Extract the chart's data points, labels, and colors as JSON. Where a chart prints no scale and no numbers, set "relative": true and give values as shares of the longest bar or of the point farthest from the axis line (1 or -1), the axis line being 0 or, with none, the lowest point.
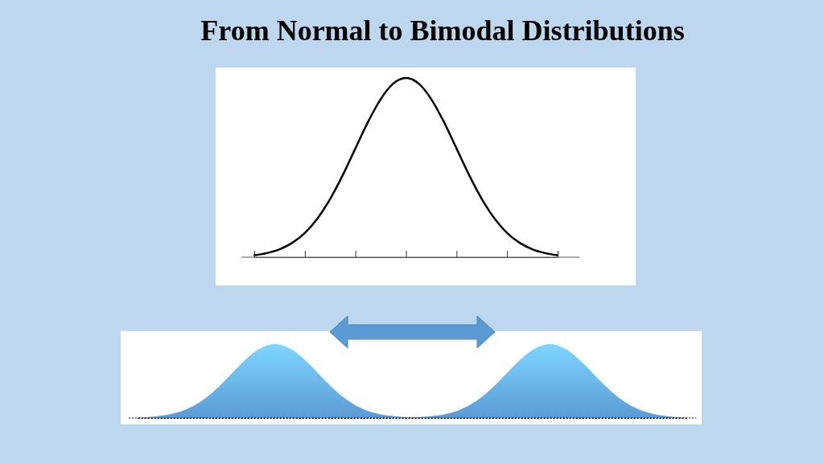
{
  "chart_data": [
    {
      "type": "line",
      "title": "From Normal to Bimodal Distributions",
      "relative": true,
      "categories": [
        null,
        null,
        null,
        null,
        null,
        null,
        null,
        null,
        null,
        null,
        null,
        null,
        null,
        null,
        null,
        null,
        null,
        null,
        null,
        null,
        null,
        null,
        null,
        null,
        null
      ],
      "series": [
        {
          "color": "#000000",
          "values": [
            0.011,
            0.023,
            0.044,
            0.08,
            0.135,
            0.216,
            0.325,
            0.458,
            0.607,
            0.755,
            0.882,
            0.969,
            1,
            0.969,
            0.882,
            0.755,
            0.607,
            0.458,
            0.325,
            0.216,
            0.135,
            0.08,
            0.044,
            0.023,
            0.011
          ]
        }
      ]
    },
    {
      "type": "area",
      "relative": true,
      "categories": [
        null,
        null,
        null,
        null,
        null,
        null,
        null,
        null,
        null,
        null,
        null,
        null,
        null,
        null,
        null,
        null,
        null,
        null,
        null,
        null,
        null,
        null,
        null,
        null,
        null,
        null,
        null,
        null,
        null,
        null,
        null,
        null,
        null
      ],
      "series": [
        {
          "color": "#5b9bd5",
          "values": [
            0.006,
            0.02,
            0.056,
            0.135,
            0.278,
            0.487,
            0.726,
            0.923,
            1,
            0.923,
            0.726,
            0.487,
            0.278,
            0.135,
            0.056,
            0.022,
            0.012,
            0.022,
            0.056,
            0.135,
            0.278,
            0.487,
            0.726,
            0.923,
            1,
            0.923,
            0.726,
            0.487,
            0.278,
            0.135,
            0.056,
            0.02,
            0.006
          ]
        }
      ]
    }
  ]
}
